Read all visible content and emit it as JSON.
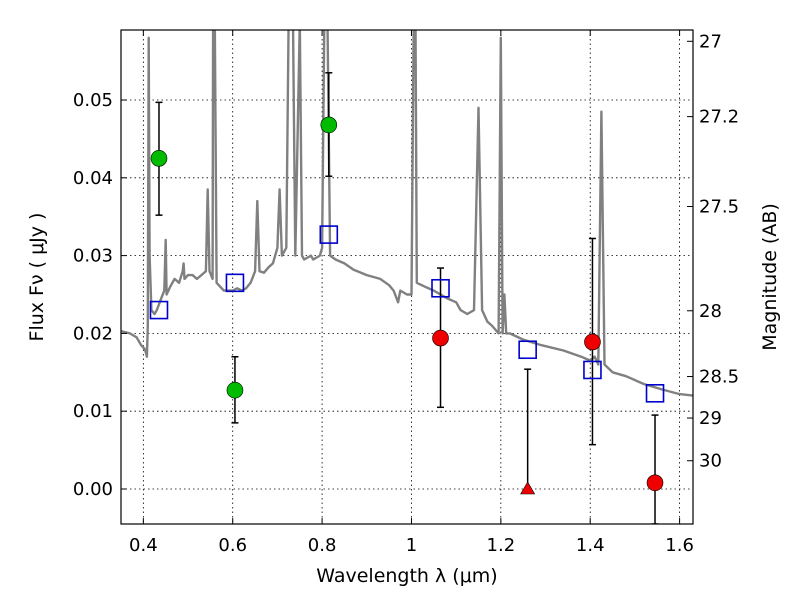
{
  "chart_data": {
    "type": "scatter",
    "xlabel": "Wavelength  λ (μm)",
    "ylabel": "Flux  Fν  ( μJy )",
    "y2label": "Magnitude (AB)",
    "xlim": [
      0.35,
      1.63
    ],
    "ylim": [
      -0.0045,
      0.059
    ],
    "xticks": [
      {
        "v": 0.4,
        "label": "0.4"
      },
      {
        "v": 0.6,
        "label": "0.6"
      },
      {
        "v": 0.8,
        "label": "0.8"
      },
      {
        "v": 1.0,
        "label": "1"
      },
      {
        "v": 1.2,
        "label": "1.2"
      },
      {
        "v": 1.4,
        "label": "1.4"
      },
      {
        "v": 1.6,
        "label": "1.6"
      }
    ],
    "yticks": [
      {
        "v": 0.0,
        "label": "0.00"
      },
      {
        "v": 0.01,
        "label": "0.01"
      },
      {
        "v": 0.02,
        "label": "0.02"
      },
      {
        "v": 0.03,
        "label": "0.03"
      },
      {
        "v": 0.04,
        "label": "0.04"
      },
      {
        "v": 0.05,
        "label": "0.05"
      }
    ],
    "magticks": [
      {
        "mag": 27,
        "label": "27"
      },
      {
        "mag": 27.2,
        "label": "27.2"
      },
      {
        "mag": 27.5,
        "label": "27.5"
      },
      {
        "mag": 28,
        "label": "28"
      },
      {
        "mag": 28.5,
        "label": "28.5"
      },
      {
        "mag": 29,
        "label": "29"
      },
      {
        "mag": 30,
        "label": "30"
      }
    ],
    "grid": true,
    "colors": {
      "spectrum": "#808080",
      "model": "#0000cc",
      "green": "#00bb00",
      "red": "#ee0000",
      "errorbar": "#000000"
    },
    "series": [
      {
        "kind": "spectrum",
        "points": [
          [
            0.35,
            0.0203
          ],
          [
            0.37,
            0.02
          ],
          [
            0.385,
            0.0195
          ],
          [
            0.395,
            0.0185
          ],
          [
            0.403,
            0.018
          ],
          [
            0.406,
            0.0175
          ],
          [
            0.408,
            0.017
          ],
          [
            0.41,
            0.021
          ],
          [
            0.412,
            0.058
          ],
          [
            0.414,
            0.03
          ],
          [
            0.418,
            0.023
          ],
          [
            0.425,
            0.0225
          ],
          [
            0.43,
            0.023
          ],
          [
            0.44,
            0.0245
          ],
          [
            0.447,
            0.0255
          ],
          [
            0.45,
            0.032
          ],
          [
            0.452,
            0.025
          ],
          [
            0.46,
            0.026
          ],
          [
            0.47,
            0.027
          ],
          [
            0.48,
            0.0265
          ],
          [
            0.488,
            0.028
          ],
          [
            0.49,
            0.029
          ],
          [
            0.492,
            0.027
          ],
          [
            0.5,
            0.0275
          ],
          [
            0.51,
            0.0275
          ],
          [
            0.52,
            0.027
          ],
          [
            0.53,
            0.0275
          ],
          [
            0.54,
            0.028
          ],
          [
            0.544,
            0.0385
          ],
          [
            0.548,
            0.028
          ],
          [
            0.555,
            0.027
          ],
          [
            0.556,
            0.06
          ],
          [
            0.56,
            0.06
          ],
          [
            0.564,
            0.0265
          ],
          [
            0.58,
            0.0255
          ],
          [
            0.6,
            0.0255
          ],
          [
            0.61,
            0.0258
          ],
          [
            0.62,
            0.0255
          ],
          [
            0.63,
            0.0258
          ],
          [
            0.64,
            0.0265
          ],
          [
            0.65,
            0.028
          ],
          [
            0.655,
            0.037
          ],
          [
            0.66,
            0.028
          ],
          [
            0.67,
            0.0278
          ],
          [
            0.68,
            0.0285
          ],
          [
            0.69,
            0.029
          ],
          [
            0.7,
            0.031
          ],
          [
            0.705,
            0.0385
          ],
          [
            0.71,
            0.03
          ],
          [
            0.72,
            0.031
          ],
          [
            0.725,
            0.06
          ],
          [
            0.735,
            0.06
          ],
          [
            0.74,
            0.03
          ],
          [
            0.75,
            0.06
          ],
          [
            0.755,
            0.03
          ],
          [
            0.76,
            0.0295
          ],
          [
            0.775,
            0.03
          ],
          [
            0.78,
            0.0295
          ],
          [
            0.795,
            0.03
          ],
          [
            0.8,
            0.031
          ],
          [
            0.805,
            0.06
          ],
          [
            0.812,
            0.06
          ],
          [
            0.818,
            0.03
          ],
          [
            0.83,
            0.0295
          ],
          [
            0.85,
            0.029
          ],
          [
            0.87,
            0.0282
          ],
          [
            0.9,
            0.0275
          ],
          [
            0.93,
            0.027
          ],
          [
            0.95,
            0.0262
          ],
          [
            0.96,
            0.0255
          ],
          [
            0.97,
            0.024
          ],
          [
            0.975,
            0.0255
          ],
          [
            0.99,
            0.025
          ],
          [
            1.0,
            0.025
          ],
          [
            1.005,
            0.06
          ],
          [
            1.009,
            0.06
          ],
          [
            1.012,
            0.0265
          ],
          [
            1.03,
            0.026
          ],
          [
            1.05,
            0.0255
          ],
          [
            1.08,
            0.0245
          ],
          [
            1.1,
            0.024
          ],
          [
            1.11,
            0.023
          ],
          [
            1.125,
            0.0225
          ],
          [
            1.14,
            0.023
          ],
          [
            1.15,
            0.049
          ],
          [
            1.158,
            0.023
          ],
          [
            1.17,
            0.0215
          ],
          [
            1.18,
            0.021
          ],
          [
            1.195,
            0.02
          ],
          [
            1.2,
            0.058
          ],
          [
            1.204,
            0.02
          ],
          [
            1.208,
            0.025
          ],
          [
            1.212,
            0.02
          ],
          [
            1.22,
            0.02
          ],
          [
            1.25,
            0.0192
          ],
          [
            1.29,
            0.0185
          ],
          [
            1.34,
            0.0178
          ],
          [
            1.38,
            0.017
          ],
          [
            1.4,
            0.0165
          ],
          [
            1.41,
            0.017
          ],
          [
            1.418,
            0.016
          ],
          [
            1.425,
            0.0485
          ],
          [
            1.432,
            0.016
          ],
          [
            1.45,
            0.015
          ],
          [
            1.48,
            0.0145
          ],
          [
            1.52,
            0.0135
          ],
          [
            1.56,
            0.0128
          ],
          [
            1.6,
            0.0122
          ],
          [
            1.63,
            0.012
          ]
        ]
      },
      {
        "kind": "model-squares",
        "points": [
          [
            0.435,
            0.023
          ],
          [
            0.605,
            0.0265
          ],
          [
            0.815,
            0.0327
          ],
          [
            1.065,
            0.0258
          ],
          [
            1.26,
            0.0179
          ],
          [
            1.405,
            0.0153
          ],
          [
            1.545,
            0.0123
          ]
        ]
      },
      {
        "kind": "green-detections",
        "points": [
          {
            "x": 0.435,
            "y": 0.0425,
            "lo": 0.0352,
            "hi": 0.0497
          },
          {
            "x": 0.605,
            "y": 0.0127,
            "lo": 0.0085,
            "hi": 0.017
          },
          {
            "x": 0.815,
            "y": 0.0468,
            "lo": 0.0402,
            "hi": 0.0535
          }
        ]
      },
      {
        "kind": "red-detections",
        "points": [
          {
            "x": 1.065,
            "y": 0.0194,
            "lo": 0.0105,
            "hi": 0.0284
          },
          {
            "x": 1.405,
            "y": 0.0189,
            "lo": 0.0057,
            "hi": 0.0322
          },
          {
            "x": 1.545,
            "y": 0.0008,
            "lo": -0.0045,
            "hi": 0.0095
          }
        ]
      },
      {
        "kind": "red-upper-limit",
        "points": [
          {
            "x": 1.26,
            "y": 0.0,
            "hi": 0.0154
          }
        ]
      }
    ]
  }
}
